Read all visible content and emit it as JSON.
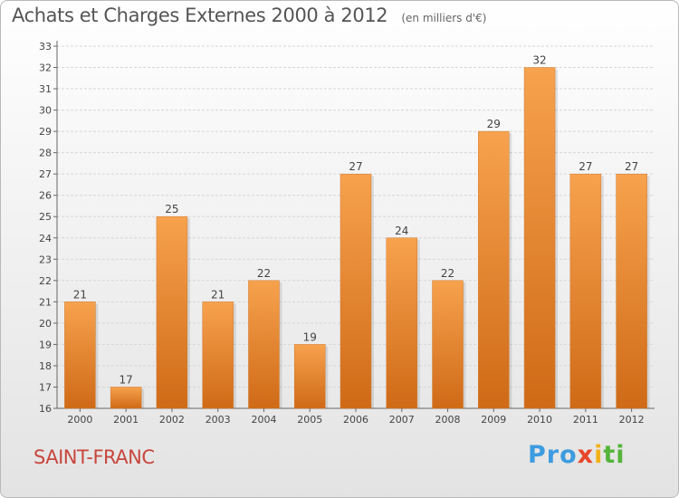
{
  "chart_data": {
    "type": "bar",
    "title": "Achats et Charges Externes 2000 à 2012",
    "subtitle": "(en milliers d'€)",
    "xlabel": "",
    "ylabel": "",
    "categories": [
      "2000",
      "2001",
      "2002",
      "2003",
      "2004",
      "2005",
      "2006",
      "2007",
      "2008",
      "2009",
      "2010",
      "2011",
      "2012"
    ],
    "values": [
      21,
      17,
      25,
      21,
      22,
      19,
      27,
      24,
      22,
      29,
      32,
      27,
      27
    ],
    "ylim": [
      16,
      33
    ],
    "yticks": [
      16,
      17,
      18,
      19,
      20,
      21,
      22,
      23,
      24,
      25,
      26,
      27,
      28,
      29,
      30,
      31,
      32,
      33
    ],
    "grid": true,
    "bar_color_top": "#f7a24e",
    "bar_color_bottom": "#cf6a17"
  },
  "place_name": "SAINT-FRANC",
  "brand": {
    "p1": "Pro",
    "p2": "x",
    "p3": "i",
    "p4": "ti"
  }
}
